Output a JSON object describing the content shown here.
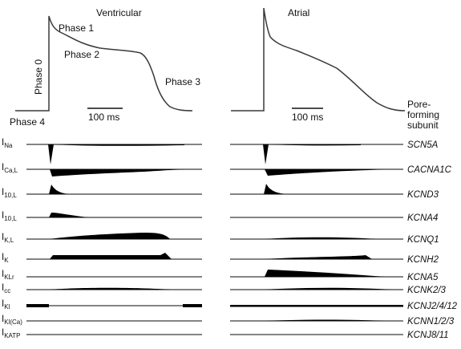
{
  "panels": {
    "ventricular_title": "Ventricular",
    "atrial_title": "Atrial"
  },
  "phases": {
    "phase0": "Phase 0",
    "phase1": "Phase 1",
    "phase2": "Phase 2",
    "phase3": "Phase 3",
    "phase4": "Phase 4"
  },
  "scale_bar": {
    "ventricular": "100 ms",
    "atrial": "100 ms"
  },
  "subunit_header": [
    "Pore-",
    "forming",
    "subunit"
  ],
  "currents": [
    {
      "main": "I",
      "sub": "Na",
      "gene": "SCN5A"
    },
    {
      "main": "I",
      "sub": "Ca,L",
      "gene": "CACNA1C"
    },
    {
      "main": "I",
      "sub": "10,L",
      "gene": "KCND3"
    },
    {
      "main": "I",
      "sub": "10,L",
      "gene": "KCNA4"
    },
    {
      "main": "I",
      "sub": "K,L",
      "gene": "KCNQ1"
    },
    {
      "main": "I",
      "sub": "K",
      "gene": "KCNH2"
    },
    {
      "main": "I",
      "sub": "KLr",
      "gene": "KCNA5"
    },
    {
      "main": "I",
      "sub": "cc",
      "gene": "KCNK2/3"
    },
    {
      "main": "I",
      "sub": "Kl",
      "gene": "KCNJ2/4/12"
    },
    {
      "main": "I",
      "sub": "Kl(Ca)",
      "gene": "KCNN1/2/3"
    },
    {
      "main": "I",
      "sub": "KATP",
      "gene": "KCNJ8/11"
    }
  ],
  "colors": {
    "trace": "#3a3a3a",
    "fill": "#000000",
    "text": "#111111"
  }
}
